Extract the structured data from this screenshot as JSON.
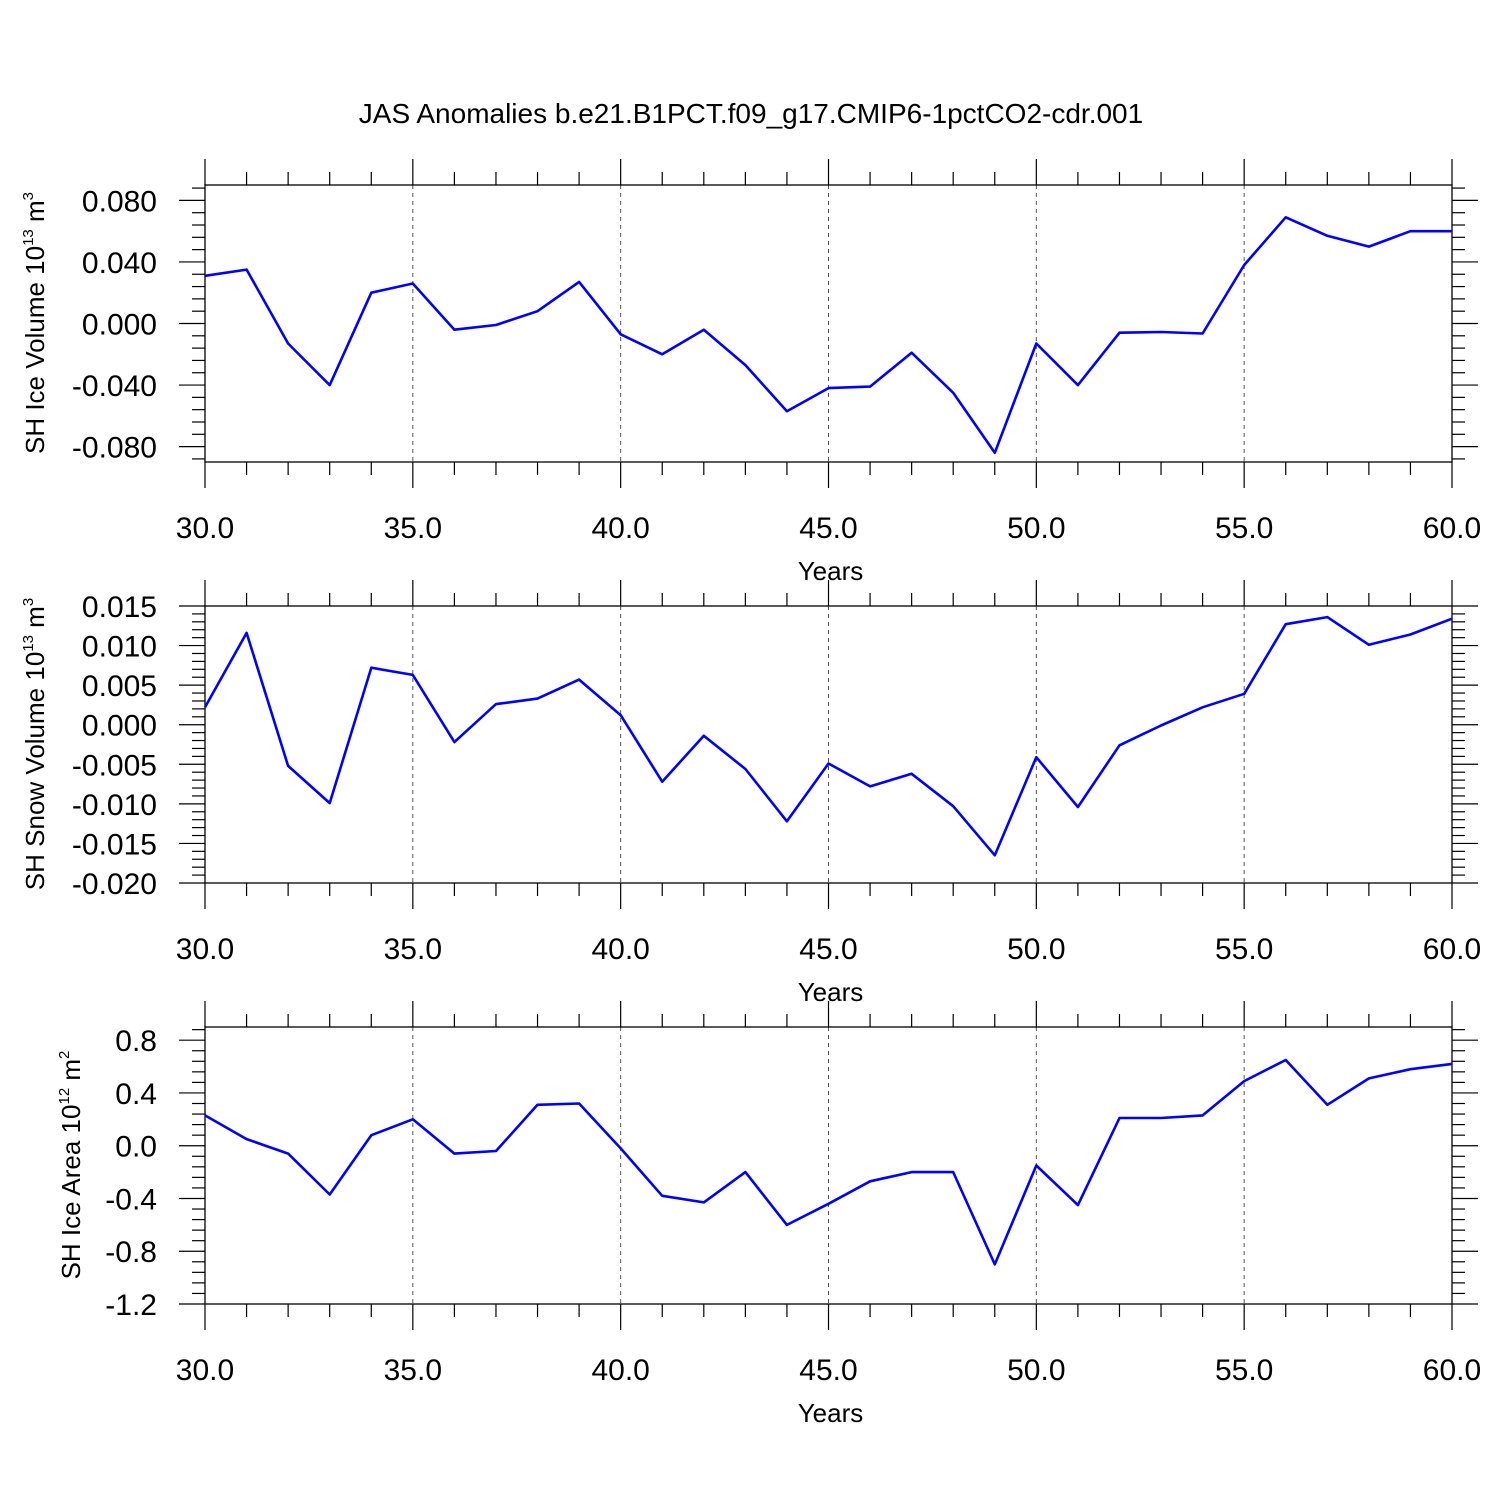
{
  "title": "JAS Anomalies b.e21.B1PCT.f09_g17.CMIP6-1pctCO2-cdr.001",
  "chart_data": [
    {
      "type": "line",
      "ylabel": {
        "main": "SH Ice Volume 10",
        "exp": "13",
        "unit": " m",
        "unit_exp": "3"
      },
      "xlabel": "Years",
      "xlim": [
        30,
        60
      ],
      "ylim": [
        -0.09,
        0.09
      ],
      "xticks": [
        "30.0",
        "35.0",
        "40.0",
        "45.0",
        "50.0",
        "55.0",
        "60.0"
      ],
      "yticks": [
        "0.080",
        "0.040",
        "0.000",
        "-0.040",
        "-0.080"
      ],
      "ytick_values": [
        0.08,
        0.04,
        0.0,
        -0.04,
        -0.08
      ],
      "ygrid": false,
      "xgrid": "dashed",
      "color": "#0000ff",
      "x": [
        30,
        31,
        32,
        33,
        34,
        35,
        36,
        37,
        38,
        39,
        40,
        41,
        42,
        43,
        44,
        45,
        46,
        47,
        48,
        49,
        50,
        51,
        52,
        53,
        54,
        55,
        56,
        57,
        58,
        59,
        60
      ],
      "y": [
        0.031,
        0.035,
        -0.013,
        -0.04,
        0.02,
        0.026,
        -0.004,
        -0.001,
        0.008,
        0.027,
        -0.007,
        -0.02,
        -0.004,
        -0.027,
        -0.057,
        -0.042,
        -0.041,
        -0.019,
        -0.045,
        -0.084,
        -0.013,
        -0.04,
        -0.006,
        -0.0055,
        -0.0065,
        0.038,
        0.069,
        0.057,
        0.05,
        0.06,
        0.06
      ]
    },
    {
      "type": "line",
      "ylabel": {
        "main": "SH Snow Volume 10",
        "exp": "13",
        "unit": " m",
        "unit_exp": "3"
      },
      "xlabel": "Years",
      "xlim": [
        30,
        60
      ],
      "ylim": [
        -0.02,
        0.015
      ],
      "xticks": [
        "30.0",
        "35.0",
        "40.0",
        "45.0",
        "50.0",
        "55.0",
        "60.0"
      ],
      "yticks": [
        "0.015",
        "0.010",
        "0.005",
        "0.000",
        "-0.005",
        "-0.010",
        "-0.015",
        "-0.020"
      ],
      "ytick_values": [
        0.015,
        0.01,
        0.005,
        0.0,
        -0.005,
        -0.01,
        -0.015,
        -0.02
      ],
      "xgrid": "dashed",
      "color": "#0000ff",
      "x": [
        30,
        31,
        32,
        33,
        34,
        35,
        36,
        37,
        38,
        39,
        40,
        41,
        42,
        43,
        44,
        45,
        46,
        47,
        48,
        49,
        50,
        51,
        52,
        53,
        54,
        55,
        56,
        57,
        58,
        59,
        60
      ],
      "y": [
        0.0022,
        0.0116,
        -0.0052,
        -0.0099,
        0.0072,
        0.0063,
        -0.0022,
        0.0026,
        0.0033,
        0.0057,
        0.0012,
        -0.0072,
        -0.0014,
        -0.0056,
        -0.0122,
        -0.0049,
        -0.0078,
        -0.0062,
        -0.0103,
        -0.0165,
        -0.0041,
        -0.0104,
        -0.0026,
        -0.0001,
        0.0022,
        0.0039,
        0.0127,
        0.0136,
        0.0101,
        0.0114,
        0.0134
      ]
    },
    {
      "type": "line",
      "ylabel": {
        "main": "SH Ice Area 10",
        "exp": "12",
        "unit": " m",
        "unit_exp": "2"
      },
      "xlabel": "Years",
      "xlim": [
        30,
        60
      ],
      "ylim": [
        -1.2,
        0.9
      ],
      "xticks": [
        "30.0",
        "35.0",
        "40.0",
        "45.0",
        "50.0",
        "55.0",
        "60.0"
      ],
      "yticks": [
        "0.8",
        "0.4",
        "0.0",
        "-0.4",
        "-0.8",
        "-1.2"
      ],
      "ytick_values": [
        0.8,
        0.4,
        0.0,
        -0.4,
        -0.8,
        -1.2
      ],
      "xgrid": "dashed",
      "color": "#0000ff",
      "x": [
        30,
        31,
        32,
        33,
        34,
        35,
        36,
        37,
        38,
        39,
        40,
        41,
        42,
        43,
        44,
        45,
        46,
        47,
        48,
        49,
        50,
        51,
        52,
        53,
        54,
        55,
        56,
        57,
        58,
        59,
        60
      ],
      "y": [
        0.23,
        0.05,
        -0.06,
        -0.37,
        0.08,
        0.2,
        -0.06,
        -0.04,
        0.31,
        0.32,
        -0.02,
        -0.38,
        -0.43,
        -0.2,
        -0.6,
        -0.44,
        -0.27,
        -0.2,
        -0.2,
        -0.9,
        -0.15,
        -0.45,
        0.21,
        0.21,
        0.23,
        0.49,
        0.65,
        0.31,
        0.51,
        0.58,
        0.62
      ]
    }
  ]
}
